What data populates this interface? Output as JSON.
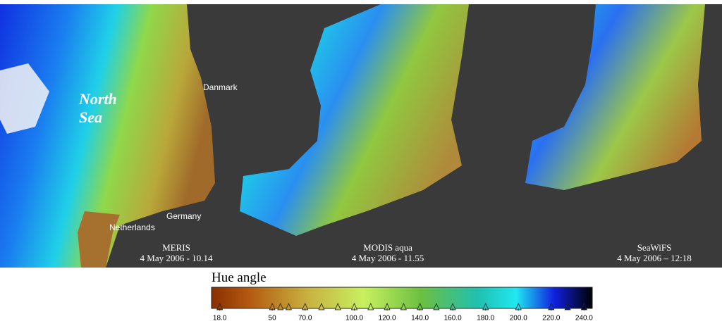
{
  "map_labels": {
    "north_sea": "North Sea",
    "danmark": "Danmark",
    "germany": "Germany",
    "netherlands": "Netherlands"
  },
  "panels": [
    {
      "sensor": "MERIS",
      "date": "4 May 2006 - 10.14"
    },
    {
      "sensor": "MODIS aqua",
      "date": "4 May 2006 - 11.55"
    },
    {
      "sensor": "SeaWiFS",
      "date": "4 May 2006 – 12:18"
    }
  ],
  "colorbar": {
    "title": "Hue angle",
    "xlim": [
      13,
      245
    ],
    "ticks": [
      {
        "value": 18,
        "label": "18.0"
      },
      50,
      {
        "value": 70,
        "label": "70.0"
      },
      {
        "value": 100,
        "label": "100.0"
      },
      {
        "value": 120,
        "label": "120.0"
      },
      {
        "value": 140,
        "label": "140.0"
      },
      {
        "value": 160,
        "label": "160.0"
      },
      {
        "value": 180,
        "label": "180.0"
      },
      {
        "value": 200,
        "label": "200.0"
      },
      {
        "value": 220,
        "label": "220.0"
      },
      {
        "value": 240,
        "label": "240.0"
      }
    ],
    "markers": [
      18,
      50,
      55,
      60,
      70,
      80,
      90,
      100,
      110,
      120,
      130,
      140,
      150,
      160,
      180,
      200,
      220,
      230,
      240
    ]
  }
}
